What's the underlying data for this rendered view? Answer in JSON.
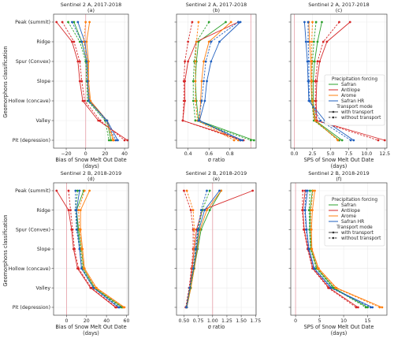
{
  "figure": {
    "ylabel": "Geomorphons classification",
    "categories": [
      "Peak (summit)",
      "Ridge",
      "Spur (Convex)",
      "Slope",
      "Hollow (concave)",
      "Valley",
      "Pit (depression)"
    ]
  },
  "legend": {
    "forcing_title": "Precipitation forcing",
    "forcing": [
      {
        "name": "Safran",
        "color": "#2ca02c"
      },
      {
        "name": "Antilope",
        "color": "#d62728"
      },
      {
        "name": "Arome",
        "color": "#ff7f0e"
      },
      {
        "name": "Safran HR",
        "color": "#1f5fbf"
      }
    ],
    "transport_title": "Transport mode",
    "transport": [
      {
        "name": "with transport",
        "style": "solid"
      },
      {
        "name": "without transport",
        "style": "dashed"
      }
    ]
  },
  "chart_data": [
    {
      "type": "line",
      "title": "Sentinel 2 A, 2017-2018",
      "subtitle": "(a)",
      "xlabel": "Bias of Snow Melt Out Date",
      "xunit": "(days)",
      "xlim": [
        -33,
        44
      ],
      "xticks": [
        -20,
        0,
        20,
        40
      ],
      "xtick_labels": [
        "−20",
        "0",
        "20",
        "40"
      ],
      "refline": 0,
      "series": [
        {
          "color": "#2ca02c",
          "style": "solid",
          "values": [
            -12,
            -4,
            1,
            2,
            3,
            22,
            26
          ]
        },
        {
          "color": "#d62728",
          "style": "solid",
          "values": [
            -30,
            -14,
            -8,
            -6,
            -3,
            13,
            43
          ]
        },
        {
          "color": "#ff7f0e",
          "style": "solid",
          "values": [
            4,
            1,
            3,
            3,
            5,
            22,
            29
          ]
        },
        {
          "color": "#1f5fbf",
          "style": "solid",
          "values": [
            -8,
            -1,
            2,
            2,
            4,
            22,
            33
          ]
        },
        {
          "color": "#2ca02c",
          "style": "dashed",
          "values": [
            -18,
            -6,
            0,
            1,
            2,
            20,
            24
          ]
        },
        {
          "color": "#d62728",
          "style": "dashed",
          "values": [
            -24,
            -12,
            -6,
            -4,
            -1,
            15,
            40
          ]
        },
        {
          "color": "#ff7f0e",
          "style": "dashed",
          "values": [
            0,
            -2,
            2,
            2,
            4,
            21,
            28
          ]
        },
        {
          "color": "#1f5fbf",
          "style": "dashed",
          "values": [
            -14,
            -4,
            1,
            2,
            3,
            21,
            31
          ]
        }
      ]
    },
    {
      "type": "line",
      "title": "Sentinel 2 A, 2017-2018",
      "subtitle": "(b)",
      "xlabel": "σ ratio",
      "xunit": "",
      "xlim": [
        0.29,
        1.05
      ],
      "xticks": [
        0.4,
        0.6,
        0.8
      ],
      "xtick_labels": [
        "0.4",
        "0.6",
        "0.8"
      ],
      "refline": 1.0,
      "series": [
        {
          "color": "#2ca02c",
          "style": "solid",
          "values": [
            0.76,
            0.5,
            0.48,
            0.47,
            0.48,
            0.5,
            1.03
          ]
        },
        {
          "color": "#d62728",
          "style": "solid",
          "values": [
            0.88,
            0.48,
            0.4,
            0.37,
            0.37,
            0.35,
            0.93
          ]
        },
        {
          "color": "#ff7f0e",
          "style": "solid",
          "values": [
            0.81,
            0.6,
            0.55,
            0.53,
            0.52,
            0.51,
            0.88
          ]
        },
        {
          "color": "#1f5fbf",
          "style": "solid",
          "values": [
            0.9,
            0.7,
            0.62,
            0.58,
            0.56,
            0.51,
            0.92
          ]
        },
        {
          "color": "#2ca02c",
          "style": "dashed",
          "values": [
            0.6,
            0.48,
            0.46,
            0.45,
            0.45,
            0.47,
            1.0
          ]
        },
        {
          "color": "#d62728",
          "style": "dashed",
          "values": [
            0.44,
            0.4,
            0.37,
            0.36,
            0.36,
            0.35,
            0.9
          ]
        },
        {
          "color": "#ff7f0e",
          "style": "dashed",
          "values": [
            0.5,
            0.48,
            0.47,
            0.47,
            0.47,
            0.49,
            0.84
          ]
        },
        {
          "color": "#1f5fbf",
          "style": "dashed",
          "values": [
            0.88,
            0.62,
            0.57,
            0.55,
            0.53,
            0.5,
            0.9
          ]
        }
      ]
    },
    {
      "type": "line",
      "title": "Sentinel 2 A, 2017-2018",
      "subtitle": "(c)",
      "xlabel": "SPS of Snow Melt Out Date",
      "xunit": "(days)",
      "xlim": [
        -0.5,
        12.8
      ],
      "xticks": [
        0,
        2.5,
        5,
        7.5,
        10,
        12.5
      ],
      "xtick_labels": [
        "0.0",
        "2.5",
        "5.0",
        "7.5",
        "10.0",
        "12.5"
      ],
      "refline": 0,
      "series": [
        {
          "color": "#2ca02c",
          "style": "solid",
          "values": [
            3.8,
            3.2,
            2.8,
            2.6,
            2.6,
            2.9,
            6.6
          ]
        },
        {
          "color": "#d62728",
          "style": "solid",
          "values": [
            7.7,
            4.5,
            3.5,
            3.1,
            3.0,
            3.1,
            12.5
          ]
        },
        {
          "color": "#ff7f0e",
          "style": "solid",
          "values": [
            2.0,
            2.1,
            2.3,
            2.3,
            2.4,
            2.8,
            6.2
          ]
        },
        {
          "color": "#1f5fbf",
          "style": "solid",
          "values": [
            1.4,
            1.6,
            1.8,
            1.9,
            2.0,
            4.2,
            8.2
          ]
        },
        {
          "color": "#2ca02c",
          "style": "dashed",
          "values": [
            3.0,
            2.7,
            2.5,
            2.4,
            2.4,
            2.7,
            6.2
          ]
        },
        {
          "color": "#d62728",
          "style": "dashed",
          "values": [
            6.2,
            4.0,
            3.2,
            2.9,
            2.9,
            3.0,
            11.6
          ]
        },
        {
          "color": "#ff7f0e",
          "style": "dashed",
          "values": [
            2.5,
            2.4,
            2.4,
            2.4,
            2.5,
            2.9,
            6.0
          ]
        },
        {
          "color": "#1f5fbf",
          "style": "dashed",
          "values": [
            1.9,
            1.9,
            2.0,
            2.0,
            2.1,
            3.6,
            7.8
          ]
        }
      ]
    },
    {
      "type": "line",
      "title": "Sentinel 2 B, 2018-2019",
      "subtitle": "(d)",
      "xlabel": "Bias of Snow Melt Out Date",
      "xunit": "(days)",
      "xlim": [
        -13,
        62
      ],
      "xticks": [
        0,
        20,
        40,
        60
      ],
      "xtick_labels": [
        "0",
        "20",
        "40",
        "60"
      ],
      "refline": 0,
      "series": [
        {
          "color": "#2ca02c",
          "style": "solid",
          "values": [
            17,
            10,
            12,
            15,
            17,
            28,
            56
          ]
        },
        {
          "color": "#d62728",
          "style": "solid",
          "values": [
            -10,
            2,
            5,
            7,
            11,
            24,
            49
          ]
        },
        {
          "color": "#ff7f0e",
          "style": "solid",
          "values": [
            23,
            14,
            14,
            16,
            18,
            30,
            58
          ]
        },
        {
          "color": "#1f5fbf",
          "style": "solid",
          "values": [
            13,
            10,
            11,
            13,
            15,
            27,
            52
          ]
        },
        {
          "color": "#2ca02c",
          "style": "dashed",
          "values": [
            11,
            9,
            11,
            14,
            16,
            27,
            55
          ]
        },
        {
          "color": "#d62728",
          "style": "dashed",
          "values": [
            2,
            4,
            6,
            8,
            12,
            25,
            50
          ]
        },
        {
          "color": "#ff7f0e",
          "style": "dashed",
          "values": [
            18,
            12,
            13,
            15,
            17,
            29,
            57
          ]
        },
        {
          "color": "#1f5fbf",
          "style": "dashed",
          "values": [
            9,
            9,
            10,
            13,
            15,
            27,
            53
          ]
        }
      ]
    },
    {
      "type": "line",
      "title": "Sentinel 2 B, 2018-2019",
      "subtitle": "(e)",
      "xlabel": "σ ratio",
      "xunit": "",
      "xlim": [
        0.37,
        1.76
      ],
      "xticks": [
        0.5,
        0.75,
        1.0,
        1.25,
        1.5,
        1.75
      ],
      "xtick_labels": [
        "0.50",
        "0.75",
        "1.00",
        "1.25",
        "1.50",
        "1.75"
      ],
      "refline": 1.0,
      "series": [
        {
          "color": "#2ca02c",
          "style": "solid",
          "values": [
            1.15,
            0.95,
            0.8,
            0.74,
            0.68,
            0.62,
            0.55
          ]
        },
        {
          "color": "#d62728",
          "style": "solid",
          "values": [
            1.7,
            0.82,
            0.72,
            0.68,
            0.64,
            0.6,
            0.54
          ]
        },
        {
          "color": "#ff7f0e",
          "style": "solid",
          "values": [
            1.15,
            0.9,
            0.78,
            0.73,
            0.68,
            0.62,
            0.55
          ]
        },
        {
          "color": "#1f5fbf",
          "style": "solid",
          "values": [
            1.12,
            0.86,
            0.76,
            0.72,
            0.67,
            0.6,
            0.55
          ]
        },
        {
          "color": "#2ca02c",
          "style": "dashed",
          "values": [
            0.95,
            0.82,
            0.75,
            0.71,
            0.67,
            0.61,
            0.54
          ]
        },
        {
          "color": "#d62728",
          "style": "dashed",
          "values": [
            0.5,
            0.62,
            0.66,
            0.66,
            0.63,
            0.59,
            0.53
          ]
        },
        {
          "color": "#ff7f0e",
          "style": "dashed",
          "values": [
            0.55,
            0.66,
            0.68,
            0.68,
            0.65,
            0.6,
            0.54
          ]
        },
        {
          "color": "#1f5fbf",
          "style": "dashed",
          "values": [
            0.9,
            0.8,
            0.74,
            0.7,
            0.66,
            0.6,
            0.54
          ]
        }
      ]
    },
    {
      "type": "line",
      "title": "Sentinel 2 B, 2018-2019",
      "subtitle": "(f)",
      "xlabel": "SPS of Snow Melt Out Date",
      "xunit": "(days)",
      "xlim": [
        -1,
        19
      ],
      "xticks": [
        0,
        5,
        10,
        15
      ],
      "xtick_labels": [
        "0",
        "5",
        "10",
        "15"
      ],
      "refline": 0,
      "series": [
        {
          "color": "#2ca02c",
          "style": "solid",
          "values": [
            3.5,
            3.0,
            3.0,
            3.2,
            4.5,
            8.0,
            15.0
          ]
        },
        {
          "color": "#d62728",
          "style": "solid",
          "values": [
            2.0,
            1.5,
            1.8,
            2.6,
            3.6,
            7.0,
            13.0
          ]
        },
        {
          "color": "#ff7f0e",
          "style": "solid",
          "values": [
            4.0,
            3.5,
            3.3,
            3.4,
            4.8,
            8.5,
            18.0
          ]
        },
        {
          "color": "#1f5fbf",
          "style": "solid",
          "values": [
            2.5,
            2.0,
            2.3,
            2.8,
            3.9,
            7.5,
            16.0
          ]
        },
        {
          "color": "#2ca02c",
          "style": "dashed",
          "values": [
            3.0,
            2.8,
            2.9,
            3.1,
            4.3,
            7.8,
            14.6
          ]
        },
        {
          "color": "#d62728",
          "style": "dashed",
          "values": [
            1.5,
            1.4,
            1.7,
            2.5,
            3.5,
            6.8,
            12.6
          ]
        },
        {
          "color": "#ff7f0e",
          "style": "dashed",
          "values": [
            3.6,
            3.2,
            3.2,
            3.3,
            4.6,
            8.3,
            17.5
          ]
        },
        {
          "color": "#1f5fbf",
          "style": "dashed",
          "values": [
            2.2,
            1.9,
            2.2,
            2.7,
            3.8,
            7.3,
            15.6
          ]
        }
      ]
    }
  ]
}
